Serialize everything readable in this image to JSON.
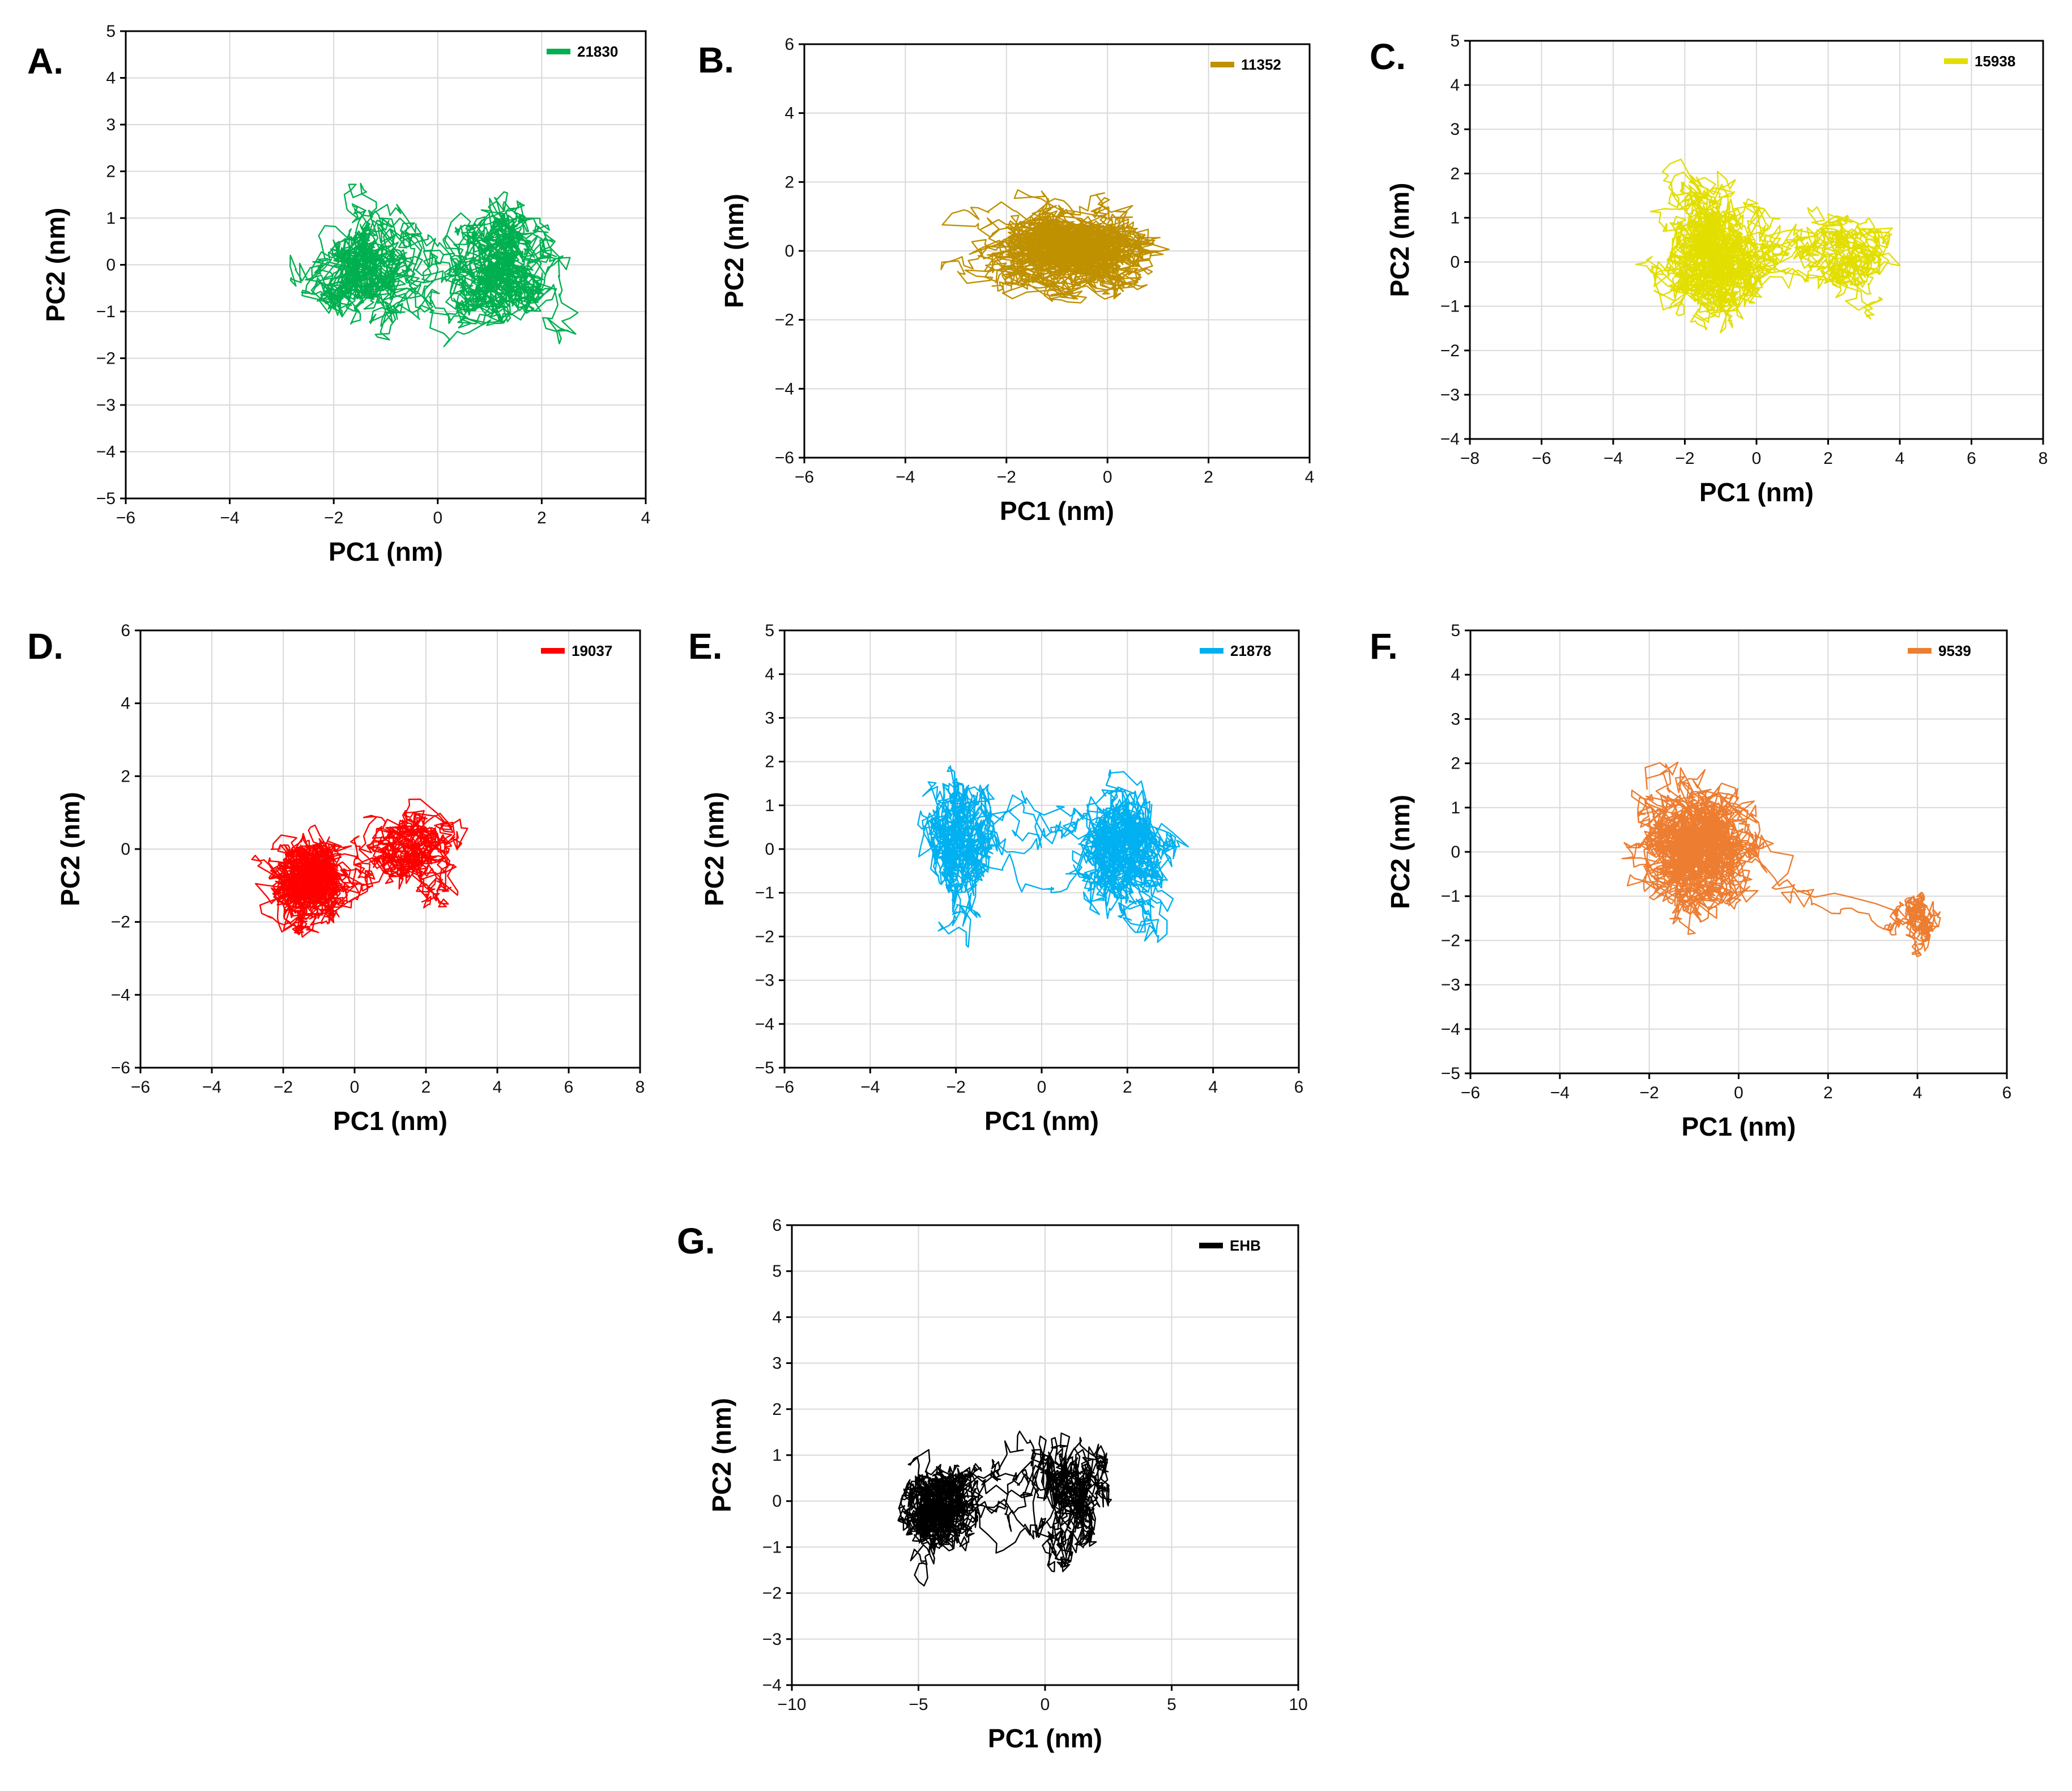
{
  "chart_data": [
    {
      "id": "A",
      "panel_label": "A.",
      "type": "line",
      "series": [
        {
          "name": "21830",
          "color": "#00b050"
        }
      ],
      "xlabel": "PC1 (nm)",
      "ylabel": "PC2 (nm)",
      "xlim": [
        -6,
        4
      ],
      "ylim": [
        -5,
        5
      ],
      "xticks": [
        -6,
        -4,
        -2,
        0,
        2,
        4
      ],
      "yticks": [
        -5,
        -4,
        -3,
        -2,
        -1,
        0,
        1,
        2,
        3,
        4,
        5
      ],
      "grid": true,
      "legend": "top-right",
      "clusters": [
        {
          "cx": -1.3,
          "cy": 0.0,
          "sx": 0.9,
          "sy": 1.1,
          "w": 1
        },
        {
          "cx": 1.2,
          "cy": 0.0,
          "sx": 0.9,
          "sy": 1.1,
          "w": 1
        }
      ],
      "extent_x": [
        -3.7,
        3.4
      ],
      "extent_y": [
        -4.5,
        4.5
      ]
    },
    {
      "id": "B",
      "panel_label": "B.",
      "type": "line",
      "series": [
        {
          "name": "11352",
          "color": "#bf9000"
        }
      ],
      "xlabel": "PC1 (nm)",
      "ylabel": "PC2 (nm)",
      "xlim": [
        -6,
        4
      ],
      "ylim": [
        -6,
        6
      ],
      "xticks": [
        -6,
        -4,
        -2,
        0,
        2,
        4
      ],
      "yticks": [
        -6,
        -4,
        -2,
        0,
        2,
        4,
        6
      ],
      "grid": true,
      "legend": "top-right",
      "clusters": [
        {
          "cx": -0.8,
          "cy": 0.0,
          "sx": 1.4,
          "sy": 1.1,
          "w": 1
        }
      ],
      "extent_x": [
        -5.0,
        3.4
      ],
      "extent_y": [
        -4.1,
        5.0
      ]
    },
    {
      "id": "C",
      "panel_label": "C.",
      "type": "line",
      "series": [
        {
          "name": "15938",
          "color": "#e2de00"
        }
      ],
      "xlabel": "PC1 (nm)",
      "ylabel": "PC2 (nm)",
      "xlim": [
        -8,
        8
      ],
      "ylim": [
        -4,
        5
      ],
      "xticks": [
        -8,
        -6,
        -4,
        -2,
        0,
        2,
        4,
        6,
        8
      ],
      "yticks": [
        -4,
        -3,
        -2,
        -1,
        0,
        1,
        2,
        3,
        4,
        5
      ],
      "grid": true,
      "legend": "top-right",
      "clusters": [
        {
          "cx": -1.4,
          "cy": 0.2,
          "sx": 1.3,
          "sy": 1.2,
          "w": 1
        },
        {
          "cx": 2.8,
          "cy": 0.2,
          "sx": 1.3,
          "sy": 0.9,
          "w": 1
        }
      ],
      "extent_x": [
        -5.8,
        5.8
      ],
      "extent_y": [
        -3.2,
        4.5
      ]
    },
    {
      "id": "D",
      "panel_label": "D.",
      "type": "line",
      "series": [
        {
          "name": "19037",
          "color": "#ff0000"
        }
      ],
      "xlabel": "PC1 (nm)",
      "ylabel": "PC2 (nm)",
      "xlim": [
        -6,
        8
      ],
      "ylim": [
        -6,
        6
      ],
      "xticks": [
        -6,
        -4,
        -2,
        0,
        2,
        4,
        6,
        8
      ],
      "yticks": [
        -6,
        -4,
        -2,
        0,
        2,
        4,
        6
      ],
      "grid": true,
      "legend": "top-right",
      "clusters": [
        {
          "cx": -1.3,
          "cy": -0.8,
          "sx": 1.1,
          "sy": 1.1,
          "w": 1
        },
        {
          "cx": 1.8,
          "cy": 0.0,
          "sx": 1.2,
          "sy": 1.1,
          "w": 1
        }
      ],
      "extent_x": [
        -4.8,
        5.4
      ],
      "extent_y": [
        -4.9,
        4.1
      ]
    },
    {
      "id": "E",
      "panel_label": "E.",
      "type": "line",
      "series": [
        {
          "name": "21878",
          "color": "#00b0f0"
        }
      ],
      "xlabel": "PC1 (nm)",
      "ylabel": "PC2 (nm)",
      "xlim": [
        -6,
        6
      ],
      "ylim": [
        -5,
        5
      ],
      "xticks": [
        -6,
        -4,
        -2,
        0,
        2,
        4,
        6
      ],
      "yticks": [
        -5,
        -4,
        -3,
        -2,
        -1,
        0,
        1,
        2,
        3,
        4,
        5
      ],
      "grid": true,
      "legend": "top-right",
      "clusters": [
        {
          "cx": -2.0,
          "cy": 0.0,
          "sx": 0.75,
          "sy": 1.35,
          "w": 1
        },
        {
          "cx": 2.0,
          "cy": 0.0,
          "sx": 1.0,
          "sy": 1.35,
          "w": 1
        }
      ],
      "extent_x": [
        -4.0,
        5.2
      ],
      "extent_y": [
        -4.1,
        4.2
      ]
    },
    {
      "id": "F",
      "panel_label": "F.",
      "type": "line",
      "series": [
        {
          "name": "9539",
          "color": "#ed7d31"
        }
      ],
      "xlabel": "PC1 (nm)",
      "ylabel": "PC2 (nm)",
      "xlim": [
        -6,
        6
      ],
      "ylim": [
        -5,
        5
      ],
      "xticks": [
        -6,
        -4,
        -2,
        0,
        2,
        4,
        6
      ],
      "yticks": [
        -5,
        -4,
        -3,
        -2,
        -1,
        0,
        1,
        2,
        3,
        4,
        5
      ],
      "grid": true,
      "legend": "top-right",
      "clusters": [
        {
          "cx": -0.9,
          "cy": 0.0,
          "sx": 1.2,
          "sy": 1.3,
          "w": 1
        },
        {
          "cx": 4.0,
          "cy": -1.5,
          "sx": 0.5,
          "sy": 0.7,
          "w": 0.3
        }
      ],
      "extent_x": [
        -4.8,
        5.1
      ],
      "extent_y": [
        -4.2,
        4.5
      ]
    },
    {
      "id": "G",
      "panel_label": "G.",
      "type": "line",
      "series": [
        {
          "name": "EHB",
          "color": "#000000"
        }
      ],
      "xlabel": "PC1 (nm)",
      "ylabel": "PC2 (nm)",
      "xlim": [
        -10,
        10
      ],
      "ylim": [
        -4,
        6
      ],
      "xticks": [
        -10,
        -5,
        0,
        5,
        10
      ],
      "yticks": [
        -4,
        -3,
        -2,
        -1,
        0,
        1,
        2,
        3,
        4,
        5,
        6
      ],
      "grid": true,
      "legend": "top-right",
      "clusters": [
        {
          "cx": -4.2,
          "cy": 0.0,
          "sx": 1.2,
          "sy": 0.9,
          "w": 1
        },
        {
          "cx": 1.2,
          "cy": 0.0,
          "sx": 1.1,
          "sy": 1.3,
          "w": 1.2
        }
      ],
      "extent_x": [
        -6.9,
        4.3
      ],
      "extent_y": [
        -3.3,
        4.6
      ]
    }
  ]
}
